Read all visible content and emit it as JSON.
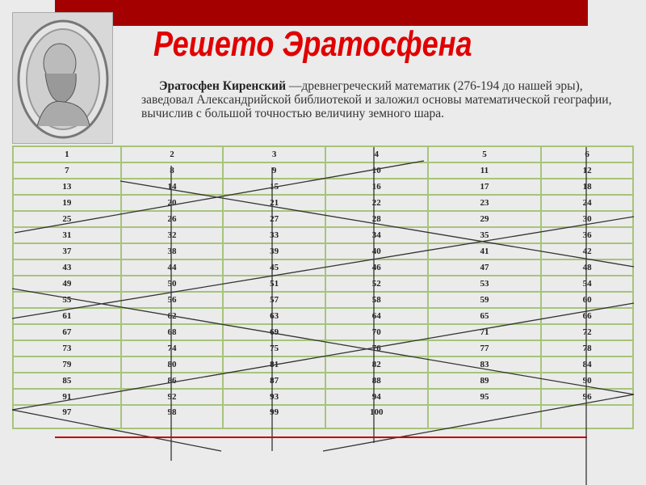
{
  "slide": {
    "title": "Решето Эратосфена",
    "description_bold": "Эратосфен Киренский",
    "description_rest": " —древнегреческий математик (276-194 до нашей эры), заведовал Александрийской библиотекой и заложил основы математической географии, вычислив с большой точностью величину земного шара.",
    "accent_color": "#a50000",
    "title_color": "#e00000",
    "grid_color": "#a6c47a",
    "portrait_icon": "eratosthenes-portrait"
  },
  "sieve": {
    "rows": [
      [
        "1",
        "2",
        "3",
        "4",
        "5",
        "6"
      ],
      [
        "7",
        "8",
        "9",
        "10",
        "11",
        "12"
      ],
      [
        "13",
        "14",
        "15",
        "16",
        "17",
        "18"
      ],
      [
        "19",
        "20",
        "21",
        "22",
        "23",
        "24"
      ],
      [
        "25",
        "26",
        "27",
        "28",
        "29",
        "30"
      ],
      [
        "31",
        "32",
        "33",
        "34",
        "35",
        "36"
      ],
      [
        "37",
        "38",
        "39",
        "40",
        "41",
        "42"
      ],
      [
        "43",
        "44",
        "45",
        "46",
        "47",
        "48"
      ],
      [
        "49",
        "50",
        "51",
        "52",
        "53",
        "54"
      ],
      [
        "55",
        "56",
        "57",
        "58",
        "59",
        "60"
      ],
      [
        "61",
        "62",
        "63",
        "64",
        "65",
        "66"
      ],
      [
        "67",
        "68",
        "69",
        "70",
        "71",
        "72"
      ],
      [
        "73",
        "74",
        "75",
        "76",
        "77",
        "78"
      ],
      [
        "79",
        "80",
        "81",
        "82",
        "83",
        "84"
      ],
      [
        "85",
        "86",
        "87",
        "88",
        "89",
        "90"
      ],
      [
        "91",
        "92",
        "93",
        "94",
        "95",
        "96"
      ],
      [
        "97",
        "98",
        "99",
        "100",
        "",
        ""
      ]
    ]
  }
}
